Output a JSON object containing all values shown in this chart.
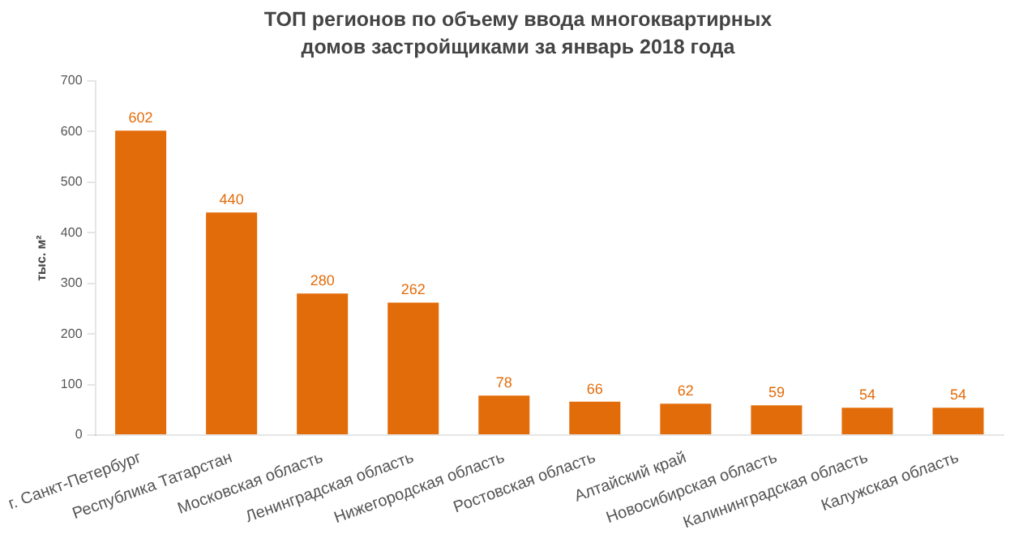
{
  "chart_data": {
    "type": "bar",
    "title": "ТОП регионов по объему ввода многоквартирных домов застройщиками за январь 2018 года",
    "ylabel": "тыс. м²",
    "categories": [
      "г. Санкт-Петербург",
      "Республика Татарстан",
      "Московская область",
      "Ленинградская область",
      "Нижегородская область",
      "Ростовская область",
      "Алтайский край",
      "Новосибирская область",
      "Калининградская область",
      "Калужская область"
    ],
    "values": [
      602,
      440,
      280,
      262,
      78,
      66,
      62,
      59,
      54,
      54
    ],
    "color": "#e36c0a",
    "ylim": [
      0,
      700
    ],
    "yticks": [
      0,
      100,
      200,
      300,
      400,
      500,
      600,
      700
    ],
    "grid": false,
    "data_labels": true
  }
}
